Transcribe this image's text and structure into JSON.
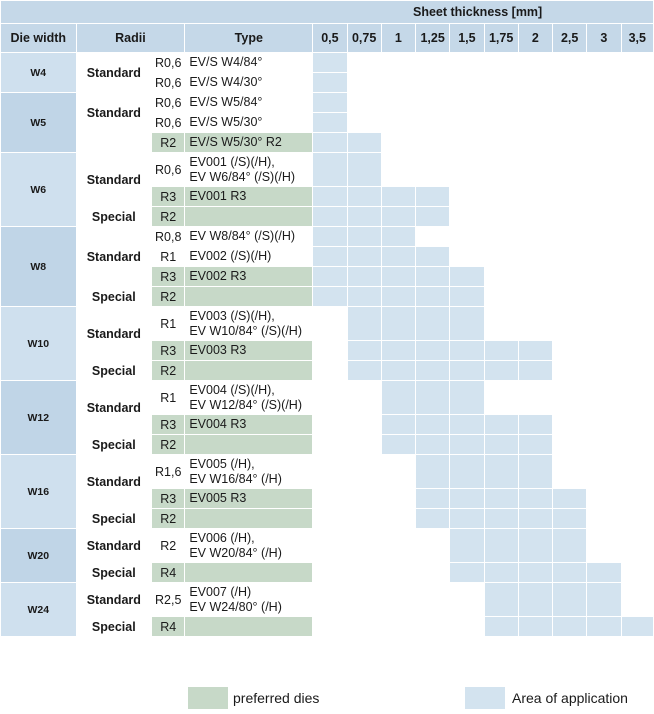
{
  "header": {
    "sheet_thickness": "Sheet thickness [mm]",
    "die_width": "Die width",
    "radii": "Radii",
    "type": "Type",
    "thicknesses": [
      "0,5",
      "0,75",
      "1",
      "1,25",
      "1,5",
      "1,75",
      "2",
      "2,5",
      "3",
      "3,5"
    ]
  },
  "groups": [
    {
      "width": "W4",
      "alt": false,
      "rows": [
        {
          "cat": "Standard",
          "catSpan": 2,
          "radius": "R0,6",
          "radSpan": 1,
          "type": "EV/S W4/84°",
          "pref": false,
          "app": [
            1,
            0,
            0,
            0,
            0,
            0,
            0,
            0,
            0,
            0
          ]
        },
        {
          "radius": "R0,6",
          "radSpan": 1,
          "type": "EV/S W4/30°",
          "pref": false,
          "app": [
            1,
            0,
            0,
            0,
            0,
            0,
            0,
            0,
            0,
            0
          ]
        }
      ]
    },
    {
      "width": "W5",
      "alt": true,
      "rows": [
        {
          "cat": "Standard",
          "catSpan": 2,
          "radius": "R0,6",
          "radSpan": 1,
          "type": "EV/S W5/84°",
          "pref": false,
          "app": [
            1,
            0,
            0,
            0,
            0,
            0,
            0,
            0,
            0,
            0
          ]
        },
        {
          "radius": "R0,6",
          "radSpan": 1,
          "type": "EV/S W5/30°",
          "pref": false,
          "app": [
            1,
            0,
            0,
            0,
            0,
            0,
            0,
            0,
            0,
            0
          ]
        },
        {
          "cat": "",
          "catSpan": 1,
          "radius": "R2",
          "radSpan": 1,
          "type": "EV/S W5/30° R2",
          "pref": true,
          "app": [
            1,
            1,
            0,
            0,
            0,
            0,
            0,
            0,
            0,
            0
          ]
        }
      ]
    },
    {
      "width": "W6",
      "alt": false,
      "rows": [
        {
          "cat": "Standard",
          "catSpan": 2,
          "radius": "R0,6",
          "radSpan": 1,
          "type": "EV001 (/S)(/H),\nEV W6/84° (/S)(/H)",
          "pref": false,
          "tall": true,
          "app": [
            1,
            1,
            0,
            0,
            0,
            0,
            0,
            0,
            0,
            0
          ]
        },
        {
          "radius": "R3",
          "radSpan": 1,
          "type": "EV001 R3",
          "pref": true,
          "app": [
            1,
            1,
            1,
            1,
            0,
            0,
            0,
            0,
            0,
            0
          ]
        },
        {
          "cat": "Special",
          "catSpan": 1,
          "radius": "R2",
          "radSpan": 1,
          "type": "",
          "pref": true,
          "app": [
            1,
            1,
            1,
            1,
            0,
            0,
            0,
            0,
            0,
            0
          ]
        }
      ]
    },
    {
      "width": "W8",
      "alt": true,
      "rows": [
        {
          "cat": "Standard",
          "catSpan": 3,
          "radius": "R0,8",
          "radSpan": 1,
          "type": "EV W8/84° (/S)(/H)",
          "pref": false,
          "app": [
            1,
            1,
            1,
            0,
            0,
            0,
            0,
            0,
            0,
            0
          ]
        },
        {
          "radius": "R1",
          "radSpan": 1,
          "type": "EV002 (/S)(/H)",
          "pref": false,
          "app": [
            1,
            1,
            1,
            1,
            0,
            0,
            0,
            0,
            0,
            0
          ]
        },
        {
          "radius": "R3",
          "radSpan": 1,
          "type": "EV002 R3",
          "pref": true,
          "app": [
            1,
            1,
            1,
            1,
            1,
            0,
            0,
            0,
            0,
            0
          ]
        },
        {
          "cat": "Special",
          "catSpan": 1,
          "radius": "R2",
          "radSpan": 1,
          "type": "",
          "pref": true,
          "app": [
            1,
            1,
            1,
            1,
            1,
            0,
            0,
            0,
            0,
            0
          ]
        }
      ]
    },
    {
      "width": "W10",
      "alt": false,
      "rows": [
        {
          "cat": "Standard",
          "catSpan": 2,
          "radius": "R1",
          "radSpan": 1,
          "type": "EV003 (/S)(/H),\nEV W10/84° (/S)(/H)",
          "pref": false,
          "tall": true,
          "app": [
            0,
            1,
            1,
            1,
            1,
            0,
            0,
            0,
            0,
            0
          ]
        },
        {
          "radius": "R3",
          "radSpan": 1,
          "type": "EV003 R3",
          "pref": true,
          "app": [
            0,
            1,
            1,
            1,
            1,
            1,
            1,
            0,
            0,
            0
          ]
        },
        {
          "cat": "Special",
          "catSpan": 1,
          "radius": "R2",
          "radSpan": 1,
          "type": "",
          "pref": true,
          "app": [
            0,
            1,
            1,
            1,
            1,
            1,
            1,
            0,
            0,
            0
          ]
        }
      ]
    },
    {
      "width": "W12",
      "alt": true,
      "rows": [
        {
          "cat": "Standard",
          "catSpan": 2,
          "radius": "R1",
          "radSpan": 1,
          "type": "EV004 (/S)(/H),\nEV W12/84° (/S)(/H)",
          "pref": false,
          "tall": true,
          "app": [
            0,
            0,
            1,
            1,
            1,
            0,
            0,
            0,
            0,
            0
          ]
        },
        {
          "radius": "R3",
          "radSpan": 1,
          "type": "EV004 R3",
          "pref": true,
          "app": [
            0,
            0,
            1,
            1,
            1,
            1,
            1,
            0,
            0,
            0
          ]
        },
        {
          "cat": "Special",
          "catSpan": 1,
          "radius": "R2",
          "radSpan": 1,
          "type": "",
          "pref": true,
          "app": [
            0,
            0,
            1,
            1,
            1,
            1,
            1,
            0,
            0,
            0
          ]
        }
      ]
    },
    {
      "width": "W16",
      "alt": false,
      "rows": [
        {
          "cat": "Standard",
          "catSpan": 2,
          "radius": "R1,6",
          "radSpan": 1,
          "type": "EV005 (/H),\nEV W16/84° (/H)",
          "pref": false,
          "tall": true,
          "app": [
            0,
            0,
            0,
            1,
            1,
            1,
            1,
            0,
            0,
            0
          ]
        },
        {
          "radius": "R3",
          "radSpan": 1,
          "type": "EV005 R3",
          "pref": true,
          "app": [
            0,
            0,
            0,
            1,
            1,
            1,
            1,
            1,
            0,
            0
          ]
        },
        {
          "cat": "Special",
          "catSpan": 1,
          "radius": "R2",
          "radSpan": 1,
          "type": "",
          "pref": true,
          "app": [
            0,
            0,
            0,
            1,
            1,
            1,
            1,
            1,
            0,
            0
          ]
        }
      ]
    },
    {
      "width": "W20",
      "alt": true,
      "rows": [
        {
          "cat": "Standard",
          "catSpan": 1,
          "radius": "R2",
          "radSpan": 1,
          "type": "EV006 (/H),\nEV W20/84° (/H)",
          "pref": false,
          "tall": true,
          "app": [
            0,
            0,
            0,
            0,
            1,
            1,
            1,
            1,
            0,
            0
          ]
        },
        {
          "cat": "Special",
          "catSpan": 1,
          "radius": "R4",
          "radSpan": 1,
          "type": "",
          "pref": true,
          "app": [
            0,
            0,
            0,
            0,
            1,
            1,
            1,
            1,
            1,
            0
          ]
        }
      ]
    },
    {
      "width": "W24",
      "alt": false,
      "rows": [
        {
          "cat": "Standard",
          "catSpan": 1,
          "radius": "R2,5",
          "radSpan": 1,
          "type": "EV007 (/H)\nEV W24/80° (/H)",
          "pref": false,
          "tall": true,
          "app": [
            0,
            0,
            0,
            0,
            0,
            1,
            1,
            1,
            1,
            0
          ]
        },
        {
          "cat": "Special",
          "catSpan": 1,
          "radius": "R4",
          "radSpan": 1,
          "type": "",
          "pref": true,
          "app": [
            0,
            0,
            0,
            0,
            0,
            1,
            1,
            1,
            1,
            1
          ]
        }
      ]
    }
  ],
  "legend": {
    "preferred": "preferred dies",
    "area": "Area of application"
  },
  "colors": {
    "preferred": "#c7d9c8",
    "area": "#d3e3ef",
    "header": "#c5d8e8"
  }
}
